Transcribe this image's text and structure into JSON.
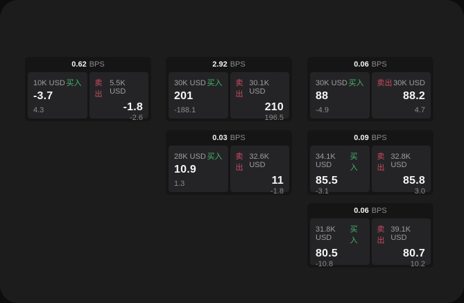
{
  "labels": {
    "bps_unit": "BPS",
    "buy": "买入",
    "sell": "卖出"
  },
  "colors": {
    "frame_background": "#1c1c1d",
    "outer_background": "#0d0d0e",
    "card_background": "#151516",
    "panel_background": "#242426",
    "buy_accent": "#45b56b",
    "sell_accent": "#c94b63",
    "primary_text": "#f5f5f5",
    "muted_text": "#8b8b8b"
  },
  "cards": [
    {
      "bps": "0.62",
      "buy": {
        "amount": "10K USD",
        "price": "-3.7",
        "delta": "4.3"
      },
      "sell": {
        "amount": "5.5K USD",
        "price": "-1.8",
        "delta": "-2.6"
      }
    },
    {
      "bps": "2.92",
      "buy": {
        "amount": "30K USD",
        "price": "201",
        "delta": "-188.1"
      },
      "sell": {
        "amount": "30.1K USD",
        "price": "210",
        "delta": "196.5"
      }
    },
    {
      "bps": "0.06",
      "buy": {
        "amount": "30K USD",
        "price": "88",
        "delta": "-4.9"
      },
      "sell": {
        "amount": "30K USD",
        "price": "88.2",
        "delta": "4.7"
      }
    },
    {
      "bps": "0.03",
      "buy": {
        "amount": "28K USD",
        "price": "10.9",
        "delta": "1.3"
      },
      "sell": {
        "amount": "32.6K USD",
        "price": "11",
        "delta": "-1.8"
      }
    },
    {
      "bps": "0.09",
      "buy": {
        "amount": "34.1K USD",
        "price": "85.5",
        "delta": "-3.1"
      },
      "sell": {
        "amount": "32.8K USD",
        "price": "85.8",
        "delta": "3.0"
      }
    },
    {
      "bps": "0.06",
      "buy": {
        "amount": "31.8K USD",
        "price": "80.5",
        "delta": "-10.8"
      },
      "sell": {
        "amount": "39.1K USD",
        "price": "80.7",
        "delta": "10.2"
      }
    }
  ]
}
